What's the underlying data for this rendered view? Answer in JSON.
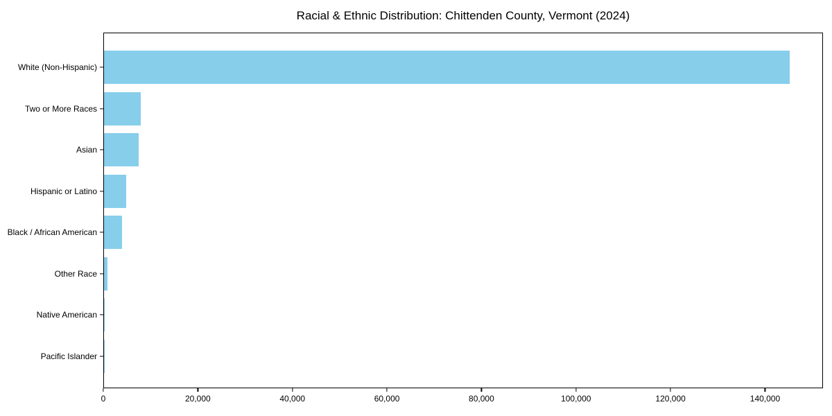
{
  "chart_data": {
    "type": "bar",
    "orientation": "horizontal",
    "title": "Racial & Ethnic Distribution: Chittenden County, Vermont (2024)",
    "xlabel": "",
    "ylabel": "",
    "categories": [
      "White (Non-Hispanic)",
      "Two or More Races",
      "Asian",
      "Hispanic or Latino",
      "Black / African American",
      "Other Race",
      "Native American",
      "Pacific Islander"
    ],
    "values": [
      145000,
      7800,
      7300,
      4700,
      3800,
      700,
      200,
      50
    ],
    "xlim": [
      0,
      152250
    ],
    "xticks": [
      0,
      20000,
      40000,
      60000,
      80000,
      100000,
      120000,
      140000
    ],
    "xtick_labels": [
      "0",
      "20,000",
      "40,000",
      "60,000",
      "80,000",
      "100,000",
      "120,000",
      "140,000"
    ],
    "bar_color": "#87CEEB",
    "background_color": "#ffffff",
    "spine_color": "#000000",
    "grid": false,
    "legend": null
  }
}
